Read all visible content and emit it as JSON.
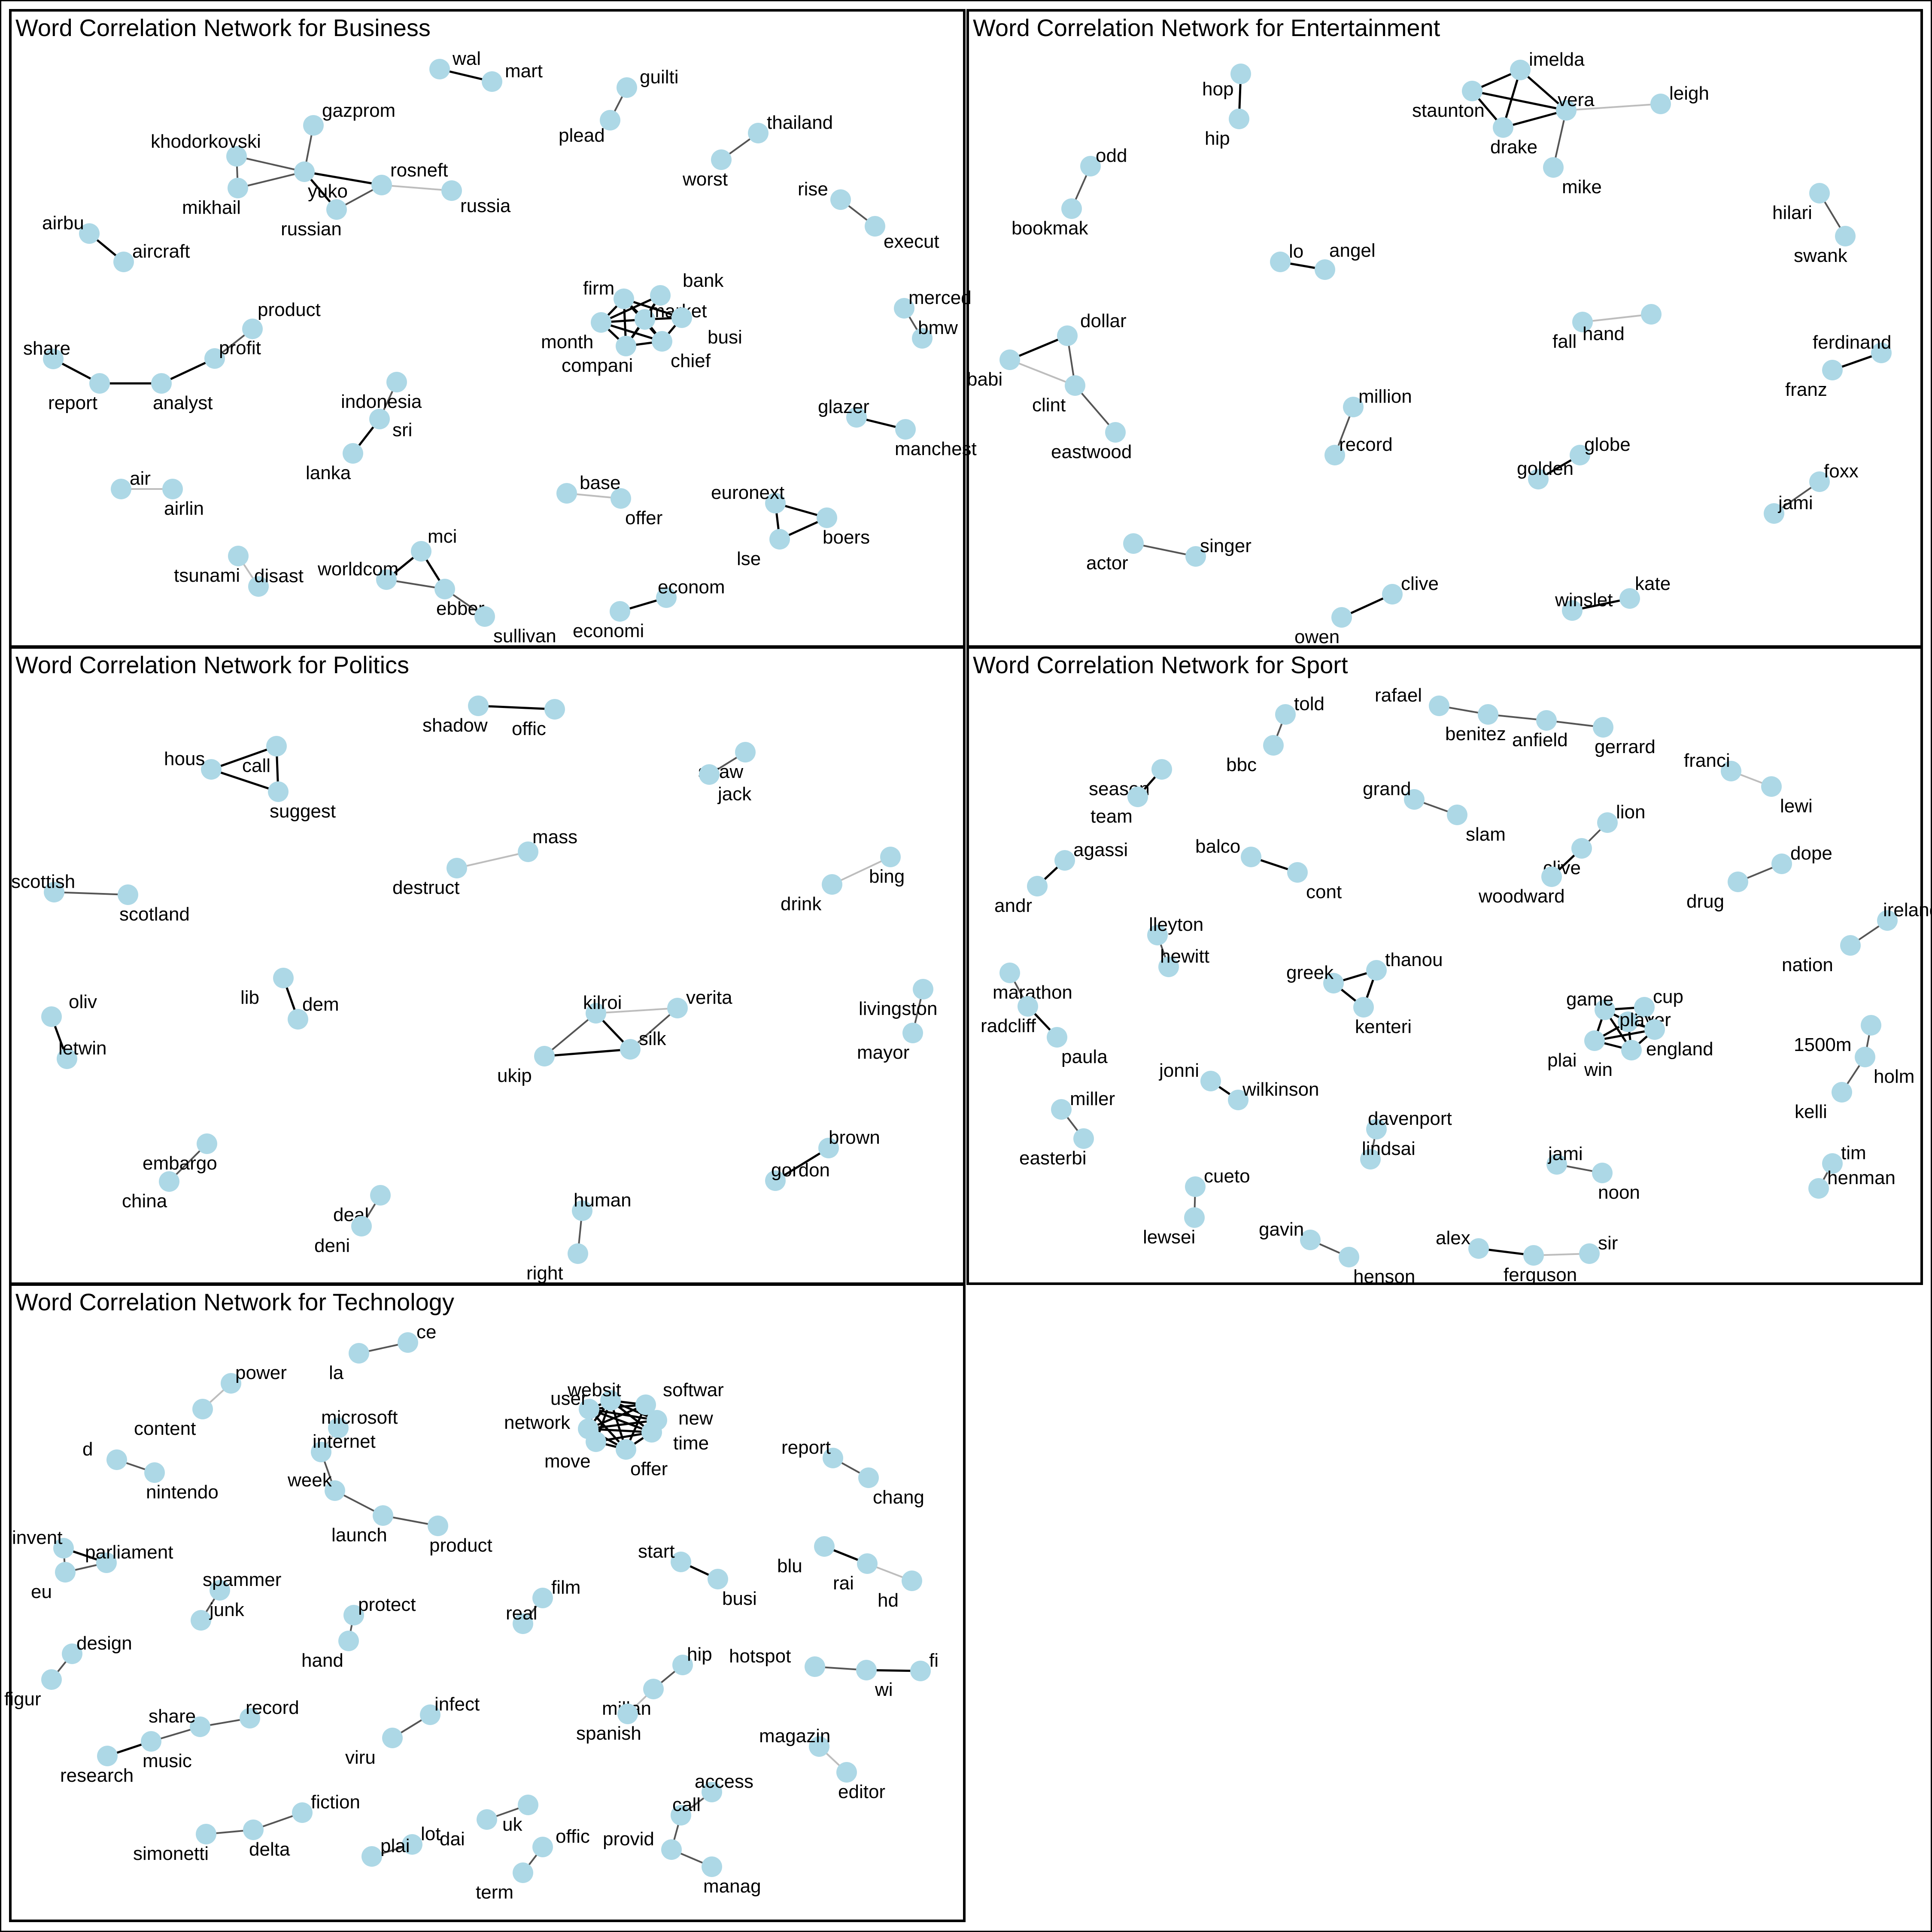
{
  "colors": {
    "node": "#add8e6",
    "edge_strong": "#000000",
    "edge_mid": "#555555",
    "edge_weak": "#bdbdbd",
    "frame": "#000000"
  },
  "panels": [
    {
      "id": "business",
      "title": "Word Correlation Network for Business",
      "nodes": [
        "wal",
        "mart",
        "guilti",
        "plead",
        "gazprom",
        "khodorkovski",
        "mikhail",
        "yuko",
        "russian",
        "rosneft",
        "russia",
        "thailand",
        "worst",
        "rise",
        "execut",
        "airbu",
        "aircraft",
        "firm",
        "bank",
        "market",
        "month",
        "compani",
        "chief",
        "busi",
        "merced",
        "bmw",
        "product",
        "share",
        "report",
        "analyst",
        "profit",
        "indonesia",
        "sri",
        "lanka",
        "glazer",
        "manchest",
        "air",
        "airlin",
        "base",
        "offer",
        "euronext",
        "boers",
        "lse",
        "tsunami",
        "disast",
        "mci",
        "worldcom",
        "ebber",
        "sullivan",
        "econom",
        "economi"
      ],
      "edges": [
        [
          "wal",
          "mart",
          1
        ],
        [
          "guilti",
          "plead",
          2
        ],
        [
          "gazprom",
          "yuko",
          2
        ],
        [
          "khodorkovski",
          "yuko",
          2
        ],
        [
          "mikhail",
          "yuko",
          2
        ],
        [
          "khodorkovski",
          "mikhail",
          2
        ],
        [
          "yuko",
          "russian",
          1
        ],
        [
          "yuko",
          "rosneft",
          1
        ],
        [
          "russian",
          "rosneft",
          2
        ],
        [
          "rosneft",
          "russia",
          3
        ],
        [
          "thailand",
          "worst",
          2
        ],
        [
          "rise",
          "execut",
          2
        ],
        [
          "airbu",
          "aircraft",
          1
        ],
        [
          "firm",
          "market",
          1
        ],
        [
          "firm",
          "month",
          1
        ],
        [
          "firm",
          "compani",
          1
        ],
        [
          "firm",
          "chief",
          1
        ],
        [
          "bank",
          "market",
          1
        ],
        [
          "bank",
          "month",
          1
        ],
        [
          "market",
          "month",
          1
        ],
        [
          "market",
          "compani",
          1
        ],
        [
          "market",
          "chief",
          1
        ],
        [
          "market",
          "busi",
          1
        ],
        [
          "month",
          "compani",
          1
        ],
        [
          "month",
          "chief",
          1
        ],
        [
          "compani",
          "chief",
          1
        ],
        [
          "chief",
          "busi",
          1
        ],
        [
          "firm",
          "busi",
          1
        ],
        [
          "bank",
          "compani",
          1
        ],
        [
          "merced",
          "bmw",
          2
        ],
        [
          "share",
          "report",
          1
        ],
        [
          "report",
          "analyst",
          1
        ],
        [
          "analyst",
          "profit",
          1
        ],
        [
          "profit",
          "product",
          2
        ],
        [
          "indonesia",
          "sri",
          2
        ],
        [
          "sri",
          "lanka",
          1
        ],
        [
          "glazer",
          "manchest",
          1
        ],
        [
          "air",
          "airlin",
          3
        ],
        [
          "base",
          "offer",
          3
        ],
        [
          "euronext",
          "boers",
          1
        ],
        [
          "euronext",
          "lse",
          1
        ],
        [
          "boers",
          "lse",
          1
        ],
        [
          "tsunami",
          "disast",
          3
        ],
        [
          "mci",
          "worldcom",
          1
        ],
        [
          "mci",
          "ebber",
          1
        ],
        [
          "worldcom",
          "ebber",
          2
        ],
        [
          "ebber",
          "sullivan",
          2
        ],
        [
          "econom",
          "economi",
          1
        ]
      ]
    },
    {
      "id": "entertainment",
      "title": "Word Correlation Network for Entertainment",
      "nodes": [
        "hop",
        "hip",
        "imelda",
        "staunton",
        "vera",
        "leigh",
        "drake",
        "mike",
        "odd",
        "bookmak",
        "hilari",
        "swank",
        "lo",
        "angel",
        "dollar",
        "babi",
        "clint",
        "eastwood",
        "fall",
        "hand",
        "ferdinand",
        "franz",
        "million",
        "record",
        "golden",
        "globe",
        "foxx",
        "jami",
        "actor",
        "singer",
        "clive",
        "owen",
        "kate",
        "winslet"
      ],
      "edges": [
        [
          "hop",
          "hip",
          1
        ],
        [
          "imelda",
          "staunton",
          1
        ],
        [
          "imelda",
          "vera",
          1
        ],
        [
          "imelda",
          "drake",
          1
        ],
        [
          "staunton",
          "vera",
          1
        ],
        [
          "staunton",
          "drake",
          1
        ],
        [
          "vera",
          "drake",
          1
        ],
        [
          "vera",
          "mike",
          2
        ],
        [
          "vera",
          "leigh",
          3
        ],
        [
          "odd",
          "bookmak",
          2
        ],
        [
          "hilari",
          "swank",
          2
        ],
        [
          "lo",
          "angel",
          1
        ],
        [
          "dollar",
          "babi",
          1
        ],
        [
          "babi",
          "clint",
          3
        ],
        [
          "dollar",
          "clint",
          2
        ],
        [
          "clint",
          "eastwood",
          2
        ],
        [
          "fall",
          "hand",
          3
        ],
        [
          "ferdinand",
          "franz",
          1
        ],
        [
          "million",
          "record",
          2
        ],
        [
          "golden",
          "globe",
          1
        ],
        [
          "foxx",
          "jami",
          2
        ],
        [
          "actor",
          "singer",
          2
        ],
        [
          "clive",
          "owen",
          1
        ],
        [
          "kate",
          "winslet",
          1
        ]
      ]
    },
    {
      "id": "politics",
      "title": "Word Correlation Network for Politics",
      "nodes": [
        "shadow",
        "offic",
        "hous",
        "call",
        "suggest",
        "straw",
        "jack",
        "mass",
        "destruct",
        "scottish",
        "scotland",
        "bing",
        "drink",
        "oliv",
        "letwin",
        "lib",
        "dem",
        "kilroi",
        "verita",
        "silk",
        "ukip",
        "livingston",
        "mayor",
        "embargo",
        "china",
        "brown",
        "gordon",
        "deal",
        "deni",
        "human",
        "right"
      ],
      "edges": [
        [
          "shadow",
          "offic",
          1
        ],
        [
          "hous",
          "call",
          1
        ],
        [
          "hous",
          "suggest",
          1
        ],
        [
          "call",
          "suggest",
          1
        ],
        [
          "straw",
          "jack",
          2
        ],
        [
          "mass",
          "destruct",
          3
        ],
        [
          "scottish",
          "scotland",
          2
        ],
        [
          "bing",
          "drink",
          3
        ],
        [
          "oliv",
          "letwin",
          1
        ],
        [
          "lib",
          "dem",
          1
        ],
        [
          "kilroi",
          "verita",
          3
        ],
        [
          "kilroi",
          "silk",
          1
        ],
        [
          "kilroi",
          "ukip",
          2
        ],
        [
          "ukip",
          "silk",
          1
        ],
        [
          "verita",
          "silk",
          2
        ],
        [
          "livingston",
          "mayor",
          2
        ],
        [
          "embargo",
          "china",
          2
        ],
        [
          "brown",
          "gordon",
          1
        ],
        [
          "deal",
          "deni",
          2
        ],
        [
          "human",
          "right",
          2
        ]
      ]
    },
    {
      "id": "sport",
      "title": "Word Correlation Network for Sport",
      "nodes": [
        "told",
        "bbc",
        "rafael",
        "benitez",
        "anfield",
        "gerrard",
        "franci",
        "lewi",
        "season",
        "team",
        "grand",
        "slam",
        "lion",
        "clive",
        "woodward",
        "dope",
        "drug",
        "agassi",
        "andr",
        "balco",
        "cont",
        "ireland",
        "nation",
        "lleyton",
        "hewitt",
        "greek",
        "thanou",
        "kenteri",
        "marathon",
        "radcliff",
        "paula",
        "game",
        "cup",
        "player",
        "plai",
        "england",
        "win",
        "1500m",
        "holm",
        "kelli",
        "jonni",
        "wilkinson",
        "miller",
        "easterbi",
        "davenport",
        "lindsai",
        "jami",
        "noon",
        "tim",
        "henman",
        "cueto",
        "lewsei",
        "gavin",
        "henson",
        "alex",
        "ferguson",
        "sir"
      ],
      "edges": [
        [
          "told",
          "bbc",
          2
        ],
        [
          "rafael",
          "benitez",
          2
        ],
        [
          "benitez",
          "anfield",
          2
        ],
        [
          "anfield",
          "gerrard",
          2
        ],
        [
          "franci",
          "lewi",
          3
        ],
        [
          "season",
          "team",
          1
        ],
        [
          "grand",
          "slam",
          2
        ],
        [
          "lion",
          "clive",
          2
        ],
        [
          "clive",
          "woodward",
          1
        ],
        [
          "dope",
          "drug",
          2
        ],
        [
          "agassi",
          "andr",
          1
        ],
        [
          "balco",
          "cont",
          1
        ],
        [
          "ireland",
          "nation",
          2
        ],
        [
          "lleyton",
          "hewitt",
          2
        ],
        [
          "greek",
          "thanou",
          1
        ],
        [
          "greek",
          "kenteri",
          1
        ],
        [
          "thanou",
          "kenteri",
          1
        ],
        [
          "marathon",
          "radcliff",
          2
        ],
        [
          "radcliff",
          "paula",
          1
        ],
        [
          "game",
          "cup",
          1
        ],
        [
          "game",
          "player",
          1
        ],
        [
          "game",
          "plai",
          1
        ],
        [
          "game",
          "win",
          1
        ],
        [
          "cup",
          "player",
          1
        ],
        [
          "cup",
          "england",
          1
        ],
        [
          "player",
          "plai",
          1
        ],
        [
          "player",
          "england",
          1
        ],
        [
          "player",
          "win",
          1
        ],
        [
          "plai",
          "win",
          1
        ],
        [
          "plai",
          "england",
          1
        ],
        [
          "win",
          "england",
          1
        ],
        [
          "1500m",
          "holm",
          2
        ],
        [
          "holm",
          "kelli",
          2
        ],
        [
          "jonni",
          "wilkinson",
          1
        ],
        [
          "miller",
          "easterbi",
          2
        ],
        [
          "davenport",
          "lindsai",
          2
        ],
        [
          "jami",
          "noon",
          2
        ],
        [
          "tim",
          "henman",
          2
        ],
        [
          "cueto",
          "lewsei",
          2
        ],
        [
          "gavin",
          "henson",
          2
        ],
        [
          "alex",
          "ferguson",
          1
        ],
        [
          "ferguson",
          "sir",
          3
        ]
      ]
    },
    {
      "id": "technology",
      "title": "Word Correlation Network for Technology",
      "nodes": [
        "ce",
        "la",
        "power",
        "content",
        "websit",
        "softwar",
        "user",
        "new",
        "network",
        "time",
        "move",
        "offer",
        "microsoft",
        "internet",
        "d",
        "nintendo",
        "week",
        "launch",
        "product",
        "report",
        "chang",
        "invent",
        "parliament",
        "eu",
        "start",
        "busi",
        "blu",
        "rai",
        "hd",
        "spammer",
        "junk",
        "film",
        "real",
        "protect",
        "hand",
        "design",
        "figur",
        "hip",
        "millan",
        "spanish",
        "hotspot",
        "wi",
        "fi",
        "share",
        "record",
        "music",
        "research",
        "infect",
        "viru",
        "magazin",
        "editor",
        "access",
        "call",
        "provid",
        "manag",
        "fiction",
        "delta",
        "simonetti",
        "dai",
        "uk",
        "lot",
        "plai",
        "offic",
        "term"
      ],
      "edges": [
        [
          "la",
          "ce",
          2
        ],
        [
          "content",
          "power",
          3
        ],
        [
          "websit",
          "softwar",
          1
        ],
        [
          "websit",
          "user",
          1
        ],
        [
          "websit",
          "new",
          1
        ],
        [
          "websit",
          "network",
          1
        ],
        [
          "websit",
          "time",
          1
        ],
        [
          "websit",
          "move",
          1
        ],
        [
          "websit",
          "offer",
          1
        ],
        [
          "softwar",
          "new",
          1
        ],
        [
          "softwar",
          "user",
          1
        ],
        [
          "softwar",
          "time",
          1
        ],
        [
          "softwar",
          "network",
          1
        ],
        [
          "user",
          "network",
          1
        ],
        [
          "user",
          "new",
          1
        ],
        [
          "user",
          "time",
          1
        ],
        [
          "user",
          "move",
          1
        ],
        [
          "user",
          "offer",
          1
        ],
        [
          "new",
          "time",
          1
        ],
        [
          "new",
          "network",
          1
        ],
        [
          "network",
          "move",
          1
        ],
        [
          "network",
          "offer",
          1
        ],
        [
          "network",
          "time",
          1
        ],
        [
          "move",
          "offer",
          1
        ],
        [
          "time",
          "offer",
          1
        ],
        [
          "move",
          "time",
          1
        ],
        [
          "softwar",
          "offer",
          1
        ],
        [
          "microsoft",
          "internet",
          3
        ],
        [
          "d",
          "nintendo",
          2
        ],
        [
          "week",
          "launch",
          2
        ],
        [
          "launch",
          "product",
          2
        ],
        [
          "internet",
          "week",
          2
        ],
        [
          "report",
          "chang",
          2
        ],
        [
          "invent",
          "parliament",
          1
        ],
        [
          "invent",
          "eu",
          2
        ],
        [
          "eu",
          "parliament",
          2
        ],
        [
          "start",
          "busi",
          1
        ],
        [
          "blu",
          "rai",
          1
        ],
        [
          "rai",
          "hd",
          3
        ],
        [
          "spammer",
          "junk",
          2
        ],
        [
          "film",
          "real",
          2
        ],
        [
          "protect",
          "hand",
          2
        ],
        [
          "design",
          "figur",
          2
        ],
        [
          "hip",
          "millan",
          2
        ],
        [
          "millan",
          "spanish",
          3
        ],
        [
          "hotspot",
          "wi",
          2
        ],
        [
          "wi",
          "fi",
          1
        ],
        [
          "share",
          "record",
          2
        ],
        [
          "share",
          "music",
          2
        ],
        [
          "music",
          "research",
          1
        ],
        [
          "infect",
          "viru",
          2
        ],
        [
          "magazin",
          "editor",
          3
        ],
        [
          "access",
          "call",
          2
        ],
        [
          "call",
          "provid",
          2
        ],
        [
          "provid",
          "manag",
          2
        ],
        [
          "fiction",
          "delta",
          2
        ],
        [
          "delta",
          "simonetti",
          2
        ],
        [
          "dai",
          "uk",
          2
        ],
        [
          "lot",
          "plai",
          2
        ],
        [
          "offic",
          "term",
          2
        ]
      ]
    }
  ]
}
